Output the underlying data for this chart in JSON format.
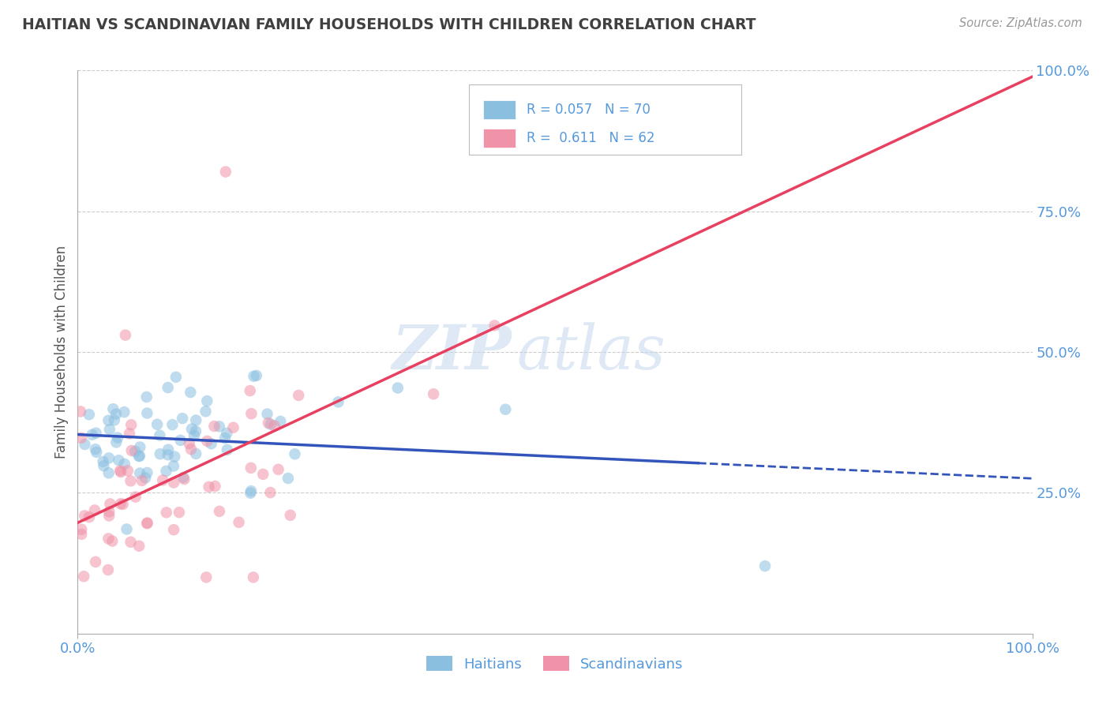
{
  "title": "HAITIAN VS SCANDINAVIAN FAMILY HOUSEHOLDS WITH CHILDREN CORRELATION CHART",
  "source_text": "Source: ZipAtlas.com",
  "ylabel": "Family Households with Children",
  "x_tick_labels": [
    "0.0%",
    "100.0%"
  ],
  "y_tick_labels_right": [
    "25.0%",
    "50.0%",
    "75.0%",
    "100.0%"
  ],
  "legend_line1": "R = 0.057   N = 70",
  "legend_line2": "R =  0.611   N = 62",
  "bottom_legend": [
    "Haitians",
    "Scandinavians"
  ],
  "haitian_color": "#8bbfe0",
  "scandinavian_color": "#f093a8",
  "haitian_line_color": "#3355bb",
  "scandinavian_line_color": "#e84060",
  "watermark_zip": "ZIP",
  "watermark_atlas": "atlas",
  "background_color": "#ffffff",
  "grid_color": "#cccccc",
  "title_color": "#404040",
  "tick_color": "#5599dd",
  "xlim": [
    0.0,
    1.0
  ],
  "ylim": [
    0.0,
    1.0
  ],
  "yticks": [
    0.25,
    0.5,
    0.75,
    1.0
  ],
  "grid_levels": [
    0.25,
    0.5,
    0.75,
    1.0
  ]
}
